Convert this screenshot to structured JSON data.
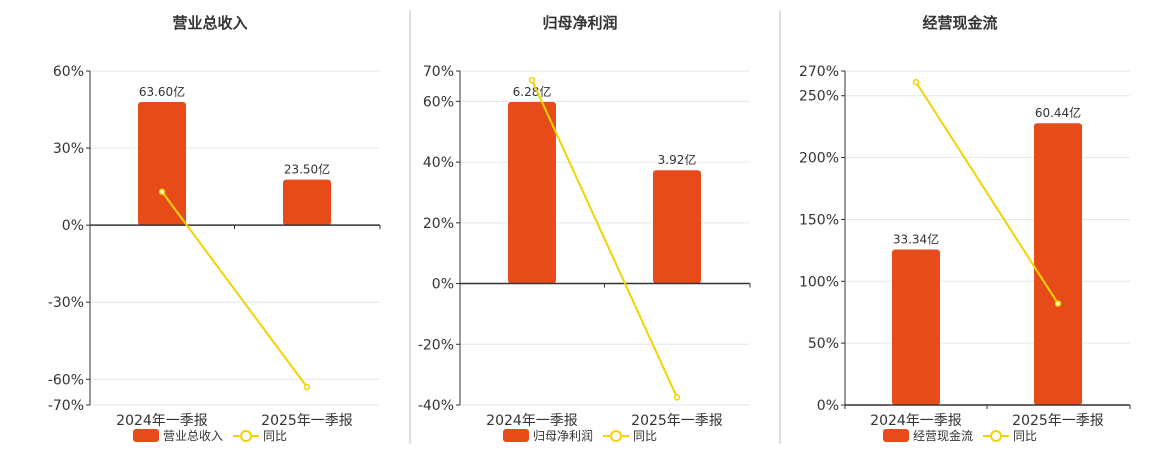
{
  "colors": {
    "bar": "#e84b1a",
    "line": "#f2d300",
    "axis": "#333333",
    "grid": "#e6e6e6",
    "divider": "#bfbfbf",
    "text": "#333333"
  },
  "chart_data": [
    {
      "type": "bar",
      "title": "营业总收入",
      "categories": [
        "2024年一季报",
        "2025年一季报"
      ],
      "series": [
        {
          "name": "营业总收入",
          "type": "bar",
          "values": [
            63.6,
            23.5
          ],
          "labels": [
            "63.60亿",
            "23.50亿"
          ]
        },
        {
          "name": "同比",
          "type": "line",
          "values": [
            13,
            -63
          ]
        }
      ],
      "ylim": [
        -70,
        60
      ],
      "ticks": [
        60,
        30,
        0,
        -30,
        -60,
        -70
      ],
      "tick_labels": [
        "60%",
        "30%",
        "0%",
        "-30%",
        "-60%",
        "-70%"
      ],
      "grid": true,
      "legend": "bottom"
    },
    {
      "type": "bar",
      "title": "归母净利润",
      "categories": [
        "2024年一季报",
        "2025年一季报"
      ],
      "series": [
        {
          "name": "归母净利润",
          "type": "bar",
          "values": [
            6.28,
            3.92
          ],
          "labels": [
            "6.28亿",
            "3.92亿"
          ]
        },
        {
          "name": "同比",
          "type": "line",
          "values": [
            67,
            -37.5
          ]
        }
      ],
      "ylim": [
        -40,
        70
      ],
      "ticks": [
        70,
        60,
        40,
        20,
        0,
        -20,
        -40
      ],
      "tick_labels": [
        "70%",
        "60%",
        "40%",
        "20%",
        "0%",
        "-20%",
        "-40%"
      ],
      "grid": true,
      "legend": "bottom"
    },
    {
      "type": "bar",
      "title": "经营现金流",
      "categories": [
        "2024年一季报",
        "2025年一季报"
      ],
      "series": [
        {
          "name": "经营现金流",
          "type": "bar",
          "values": [
            33.34,
            60.44
          ],
          "labels": [
            "33.34亿",
            "60.44亿"
          ]
        },
        {
          "name": "同比",
          "type": "line",
          "values": [
            261,
            82
          ]
        }
      ],
      "ylim": [
        0,
        270
      ],
      "ticks": [
        270,
        250,
        200,
        150,
        100,
        50,
        0
      ],
      "tick_labels": [
        "270%",
        "250%",
        "200%",
        "150%",
        "100%",
        "50%",
        "0%"
      ],
      "grid": true,
      "legend": "bottom"
    }
  ]
}
